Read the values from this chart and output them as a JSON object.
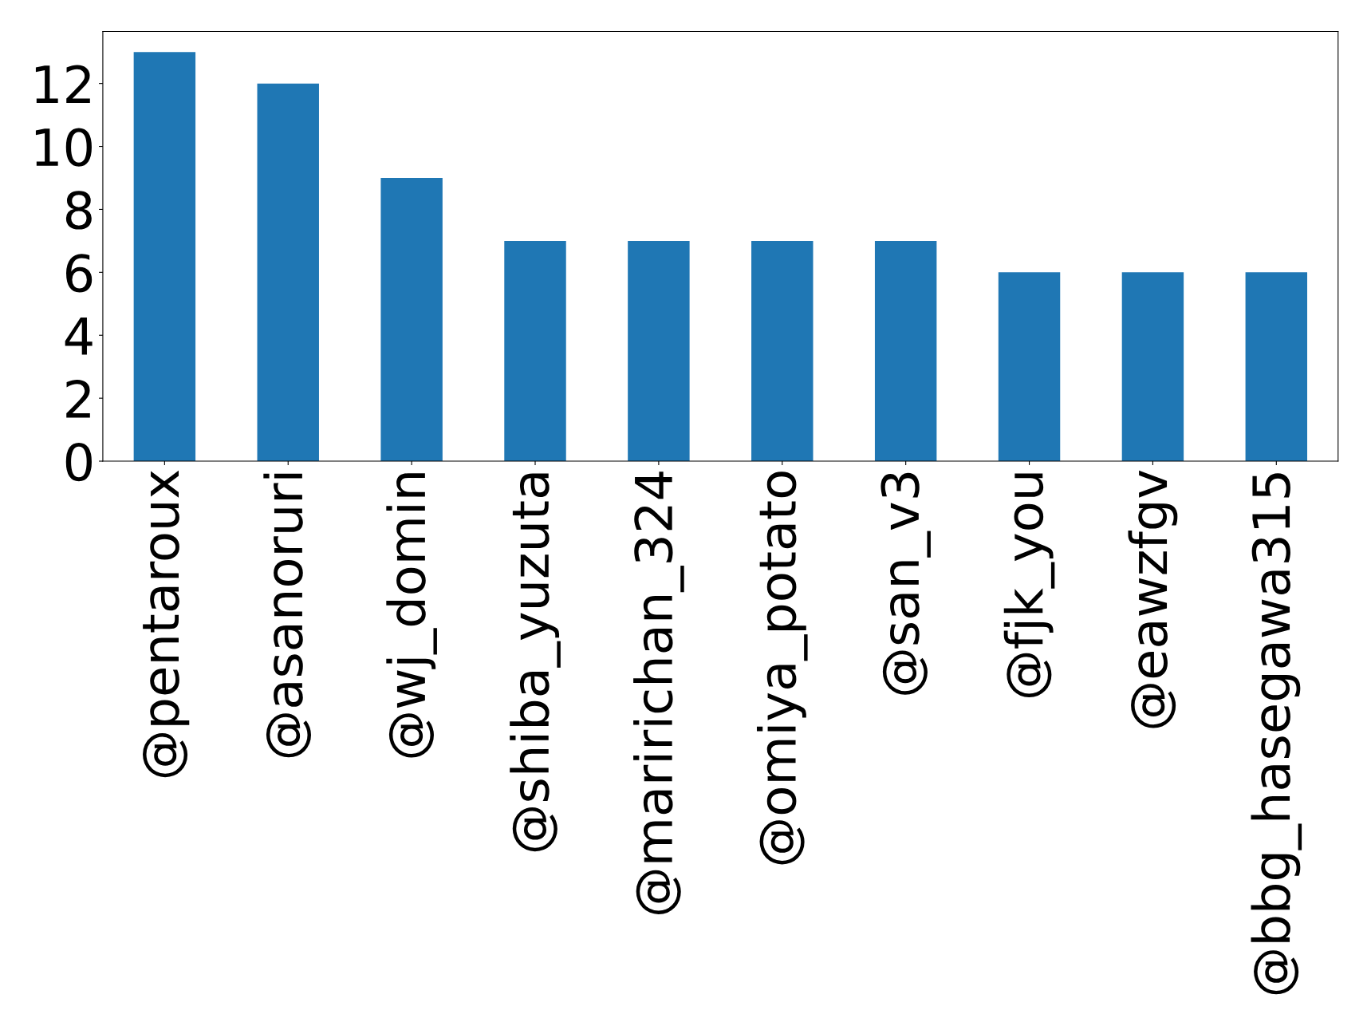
{
  "chart_data": {
    "type": "bar",
    "categories": [
      "@pentaroux",
      "@asanoruri",
      "@wj_domin",
      "@shiba_yuzuta",
      "@maririchan_324",
      "@omiya_potato",
      "@san_v3",
      "@fjk_you",
      "@eawzfgv",
      "@bbg_hasegawa315"
    ],
    "values": [
      13,
      12,
      9,
      7,
      7,
      7,
      7,
      6,
      6,
      6
    ],
    "color": "#1f77b4",
    "ylim": [
      0,
      13.65
    ],
    "yticks": [
      0,
      2,
      4,
      6,
      8,
      10,
      12
    ],
    "grid": false,
    "legend": false
  }
}
